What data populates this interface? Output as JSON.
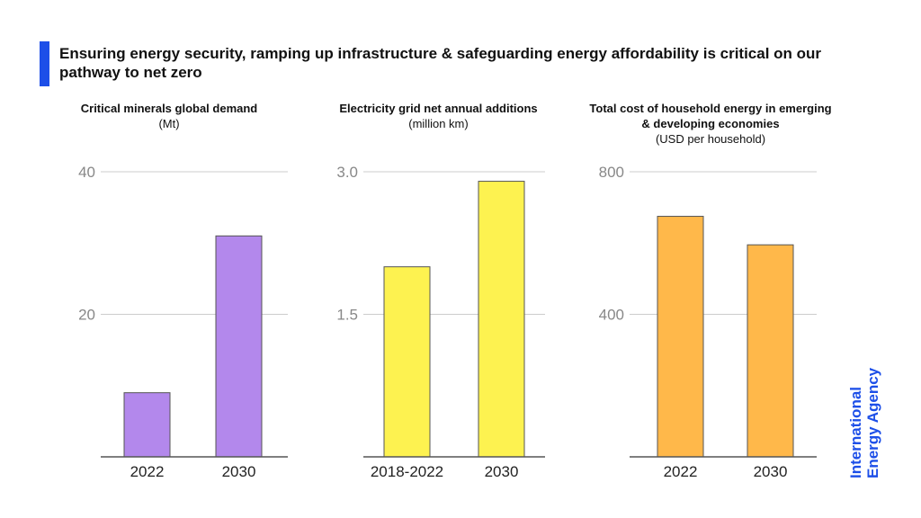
{
  "header": {
    "title": "Ensuring energy security, ramping up infrastructure & safeguarding energy affordability is critical on our pathway to net zero"
  },
  "brand": {
    "line1": "International",
    "line2": "Energy Agency",
    "color": "#1d4fe8"
  },
  "colors": {
    "accent": "#1d4fe8",
    "grid": "#cccccc",
    "axis": "#555555",
    "tick_text": "#888888"
  },
  "chart_data": [
    {
      "type": "bar",
      "title": "Critical minerals global demand",
      "unit": "(Mt)",
      "categories": [
        "2022",
        "2030"
      ],
      "values": [
        9,
        31
      ],
      "yticks": [
        "20",
        "40"
      ],
      "ylim": [
        0,
        40
      ],
      "color": "#b388ec",
      "grid": true
    },
    {
      "type": "bar",
      "title": "Electricity grid net annual additions",
      "unit": "(million km)",
      "categories": [
        "2018-2022",
        "2030"
      ],
      "values": [
        2.0,
        2.9
      ],
      "yticks": [
        "1.5",
        "3.0"
      ],
      "ylim": [
        0,
        3.0
      ],
      "color": "#fdf250",
      "grid": true
    },
    {
      "type": "bar",
      "title": "Total cost of household energy in emerging & developing economies",
      "unit": "(USD per household)",
      "categories": [
        "2022",
        "2030"
      ],
      "values": [
        675,
        595
      ],
      "yticks": [
        "400",
        "800"
      ],
      "ylim": [
        0,
        800
      ],
      "color": "#ffb84a",
      "grid": true
    }
  ]
}
